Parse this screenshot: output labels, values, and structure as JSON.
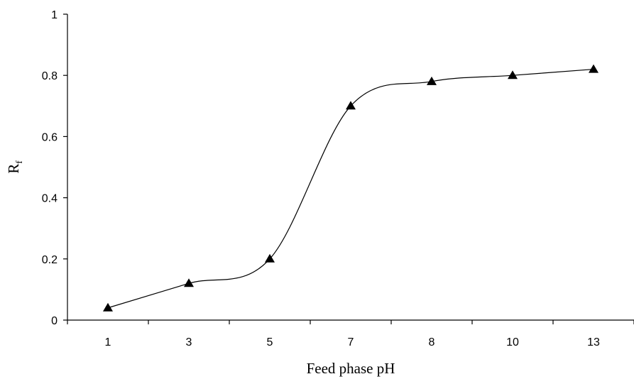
{
  "chart_data": {
    "type": "line",
    "categories": [
      "1",
      "3",
      "5",
      "7",
      "8",
      "10",
      "13"
    ],
    "series": [
      {
        "values": [
          0.04,
          0.12,
          0.2,
          0.7,
          0.78,
          0.8,
          0.82
        ],
        "marker": "triangle",
        "color": "#000000",
        "smooth": true
      }
    ],
    "xlabel": "Feed phase pH",
    "ylabel": "R",
    "ylabel_subscript": "f",
    "ylim": [
      0,
      1
    ],
    "yticks": [
      "0",
      "0.2",
      "0.4",
      "0.6",
      "0.8",
      "1"
    ],
    "grid": false
  }
}
